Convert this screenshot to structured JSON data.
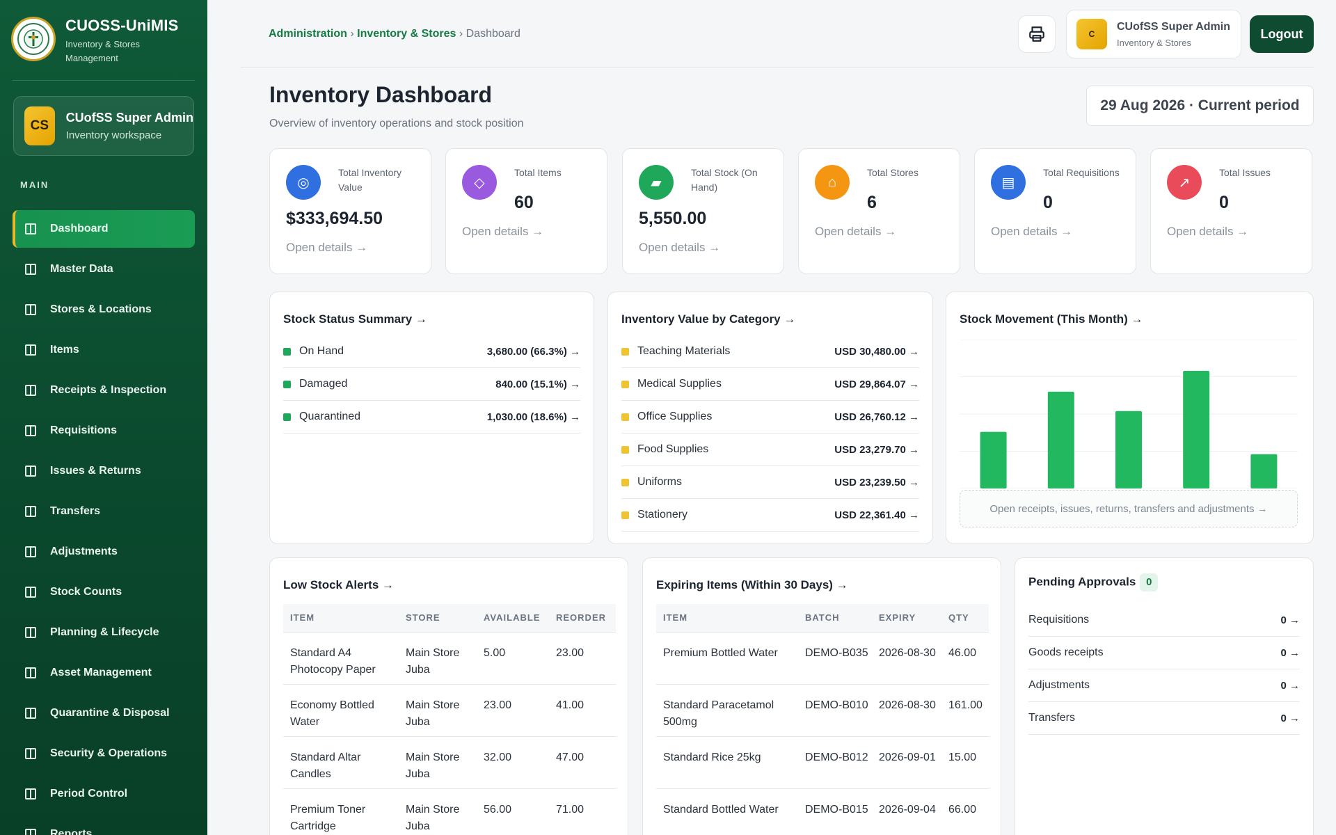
{
  "brand": {
    "title": "CUOSS-UniMIS",
    "subtitle": "Inventory & Stores Management"
  },
  "user_card": {
    "initials": "CS",
    "name": "CUofSS Super Admin",
    "role": "Inventory workspace"
  },
  "nav": {
    "heading": "MAIN",
    "items": [
      "Dashboard",
      "Master Data",
      "Stores & Locations",
      "Items",
      "Receipts & Inspection",
      "Requisitions",
      "Issues & Returns",
      "Transfers",
      "Adjustments",
      "Stock Counts",
      "Planning & Lifecycle",
      "Asset Management",
      "Quarantine & Disposal",
      "Security & Operations",
      "Period Control",
      "Reports"
    ]
  },
  "header": {
    "breadcrumb": [
      "Administration",
      "Inventory & Stores",
      "Dashboard"
    ],
    "user": {
      "initials": "C",
      "name": "CUofSS Super Admin",
      "role": "Inventory & Stores"
    },
    "logout_label": "Logout"
  },
  "page": {
    "title": "Inventory Dashboard",
    "subtitle": "Overview of inventory operations and stock position",
    "period": "29 Aug 2026 · Current period"
  },
  "stats": [
    {
      "label": "Total Inventory Value",
      "value": "$333,694.50",
      "link": "Open details →",
      "icon": "target-icon",
      "color": "#2f6fe0"
    },
    {
      "label": "Total Items",
      "value": "60",
      "link": "Open details →",
      "icon": "diamond-icon",
      "color": "#9a5ae0"
    },
    {
      "label": "Total Stock (On Hand)",
      "value": "5,550.00",
      "link": "Open details →",
      "icon": "tag-icon",
      "color": "#1fa85a"
    },
    {
      "label": "Total Stores",
      "value": "6",
      "link": "Open details →",
      "icon": "home-icon",
      "color": "#f59612"
    },
    {
      "label": "Total Requisitions",
      "value": "0",
      "link": "Open details →",
      "icon": "list-icon",
      "color": "#2f6fe0"
    },
    {
      "label": "Total Issues",
      "value": "0",
      "link": "Open details →",
      "icon": "arrow-up-right-icon",
      "color": "#ea4b5a"
    }
  ],
  "stock_status": {
    "title": "Stock Status Summary →",
    "color": "#1fa85a",
    "rows": [
      {
        "label": "On Hand",
        "value": "3,680.00 (66.3%) →"
      },
      {
        "label": "Damaged",
        "value": "840.00 (15.1%) →"
      },
      {
        "label": "Quarantined",
        "value": "1,030.00 (18.6%) →"
      }
    ]
  },
  "category_value": {
    "title": "Inventory Value by Category →",
    "color": "#f0c431",
    "rows": [
      {
        "label": "Teaching Materials",
        "value": "USD 30,480.00 →"
      },
      {
        "label": "Medical Supplies",
        "value": "USD 29,864.07 →"
      },
      {
        "label": "Office Supplies",
        "value": "USD 26,760.12 →"
      },
      {
        "label": "Food Supplies",
        "value": "USD 23,279.70 →"
      },
      {
        "label": "Uniforms",
        "value": "USD 23,239.50 →"
      },
      {
        "label": "Stationery",
        "value": "USD 22,361.40 →"
      }
    ]
  },
  "stock_movement": {
    "title": "Stock Movement (This Month) →",
    "cta": "Open receipts, issues, returns, transfers and adjustments →",
    "bar_color": "#22b85f"
  },
  "chart_data": {
    "type": "bar",
    "title": "Stock Movement (This Month)",
    "categories": [
      "",
      "",
      "",
      "",
      ""
    ],
    "values": [
      38,
      65,
      52,
      79,
      23
    ],
    "ylim": [
      0,
      100
    ],
    "grid": true,
    "legend": "none"
  },
  "low_stock": {
    "title": "Low Stock Alerts →",
    "columns": [
      "ITEM",
      "STORE",
      "AVAILABLE",
      "REORDER"
    ],
    "rows": [
      [
        "Standard A4 Photocopy Paper",
        "Main Store Juba",
        "5.00",
        "23.00"
      ],
      [
        "Economy Bottled Water",
        "Main Store Juba",
        "23.00",
        "41.00"
      ],
      [
        "Standard Altar Candles",
        "Main Store Juba",
        "32.00",
        "47.00"
      ],
      [
        "Premium Toner Cartridge",
        "Main Store Juba",
        "56.00",
        "71.00"
      ]
    ]
  },
  "expiring": {
    "title": "Expiring Items (Within 30 Days) →",
    "columns": [
      "ITEM",
      "BATCH",
      "EXPIRY",
      "QTY"
    ],
    "rows": [
      [
        "Premium Bottled Water",
        "DEMO-B035",
        "2026-08-30",
        "46.00"
      ],
      [
        "Standard Paracetamol 500mg",
        "DEMO-B010",
        "2026-08-30",
        "161.00"
      ],
      [
        "Standard Rice 25kg",
        "DEMO-B012",
        "2026-09-01",
        "15.00"
      ],
      [
        "Standard Bottled Water",
        "DEMO-B015",
        "2026-09-04",
        "66.00"
      ]
    ]
  },
  "approvals": {
    "title": "Pending Approvals",
    "badge": "0",
    "rows": [
      {
        "label": "Requisitions",
        "value": "0 →"
      },
      {
        "label": "Goods receipts",
        "value": "0 →"
      },
      {
        "label": "Adjustments",
        "value": "0 →"
      },
      {
        "label": "Transfers",
        "value": "0 →"
      }
    ]
  }
}
